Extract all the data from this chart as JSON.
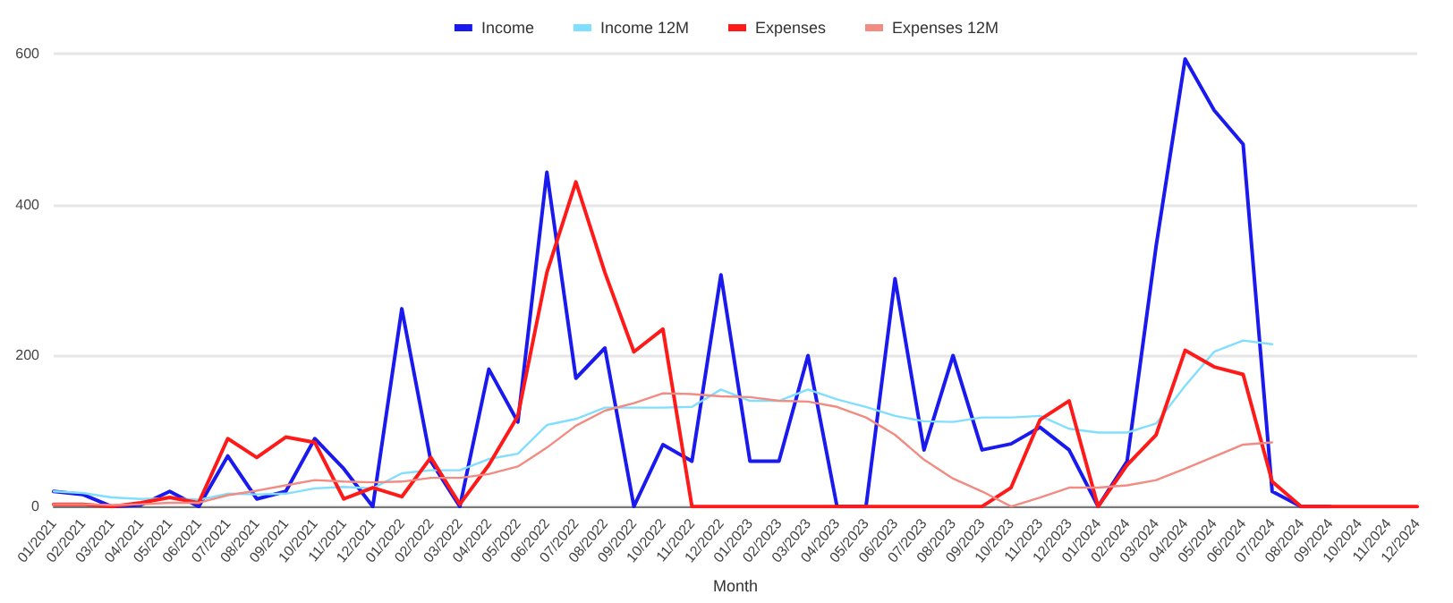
{
  "chart_data": {
    "type": "line",
    "xlabel": "Month",
    "categories": [
      "01/2021",
      "02/2021",
      "03/2021",
      "04/2021",
      "05/2021",
      "06/2021",
      "07/2021",
      "08/2021",
      "09/2021",
      "10/2021",
      "11/2021",
      "12/2021",
      "01/2022",
      "02/2022",
      "03/2022",
      "04/2022",
      "05/2022",
      "06/2022",
      "07/2022",
      "08/2022",
      "09/2022",
      "10/2022",
      "11/2022",
      "12/2022",
      "01/2023",
      "02/2023",
      "03/2023",
      "04/2023",
      "05/2023",
      "06/2023",
      "07/2023",
      "08/2023",
      "09/2023",
      "10/2023",
      "11/2023",
      "12/2023",
      "01/2024",
      "02/2024",
      "03/2024",
      "04/2024",
      "05/2024",
      "06/2024",
      "07/2024",
      "08/2024",
      "09/2024",
      "10/2024",
      "11/2024",
      "12/2024"
    ],
    "series": [
      {
        "name": "Income",
        "color": "#1a1aee",
        "values": [
          20,
          16,
          0,
          2,
          20,
          0,
          67,
          10,
          20,
          90,
          50,
          0,
          262,
          60,
          0,
          182,
          112,
          443,
          170,
          210,
          0,
          82,
          60,
          307,
          60,
          60,
          200,
          0,
          0,
          302,
          75,
          200,
          75,
          83,
          105,
          75,
          0,
          60,
          345,
          593,
          525,
          480,
          20,
          0,
          0,
          null,
          null,
          null
        ]
      },
      {
        "name": "Income 12M",
        "color": "#80deff",
        "values": [
          20,
          18,
          12,
          10,
          11,
          9,
          17,
          16,
          17,
          24,
          26,
          24,
          44,
          48,
          48,
          63,
          70,
          108,
          116,
          131,
          131,
          131,
          132,
          155,
          140,
          140,
          155,
          142,
          132,
          120,
          113,
          112,
          118,
          118,
          120,
          103,
          98,
          98,
          110,
          160,
          205,
          220,
          215,
          null,
          null,
          null,
          null,
          null
        ]
      },
      {
        "name": "Expenses",
        "color": "#ff1a1a",
        "values": [
          3,
          3,
          0,
          5,
          12,
          5,
          90,
          65,
          92,
          85,
          10,
          25,
          13,
          65,
          3,
          55,
          120,
          310,
          430,
          310,
          205,
          235,
          0,
          0,
          0,
          0,
          0,
          0,
          0,
          0,
          0,
          0,
          0,
          25,
          115,
          140,
          0,
          55,
          95,
          207,
          185,
          175,
          33,
          0,
          0,
          0,
          0,
          0
        ]
      },
      {
        "name": "Expenses 12M",
        "color": "#f28b82",
        "values": [
          3,
          3,
          2,
          3,
          5,
          5,
          15,
          21,
          28,
          35,
          33,
          32,
          33,
          38,
          38,
          43,
          53,
          78,
          107,
          127,
          137,
          150,
          149,
          146,
          145,
          140,
          139,
          132,
          118,
          95,
          62,
          37,
          20,
          0,
          12,
          25,
          25,
          28,
          35,
          50,
          66,
          82,
          85,
          null,
          null,
          null,
          null,
          null
        ]
      }
    ],
    "ylim": [
      0,
      600
    ],
    "yticks": [
      0,
      200,
      400,
      600
    ],
    "grid": "y",
    "legend": "top",
    "marker": "none",
    "line_style": "solid"
  }
}
